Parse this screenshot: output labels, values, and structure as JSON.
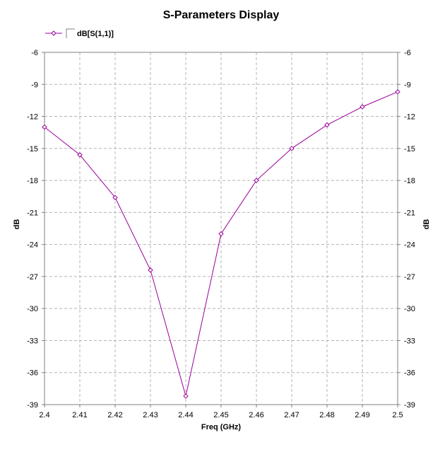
{
  "chart_data": {
    "type": "line",
    "title": "S-Parameters Display",
    "xlabel": "Freq (GHz)",
    "ylabel": "dB",
    "ylabel_right": "dB",
    "xlim": [
      2.4,
      2.5
    ],
    "ylim": [
      -39,
      -6
    ],
    "x_ticks": [
      "2.4",
      "2.41",
      "2.42",
      "2.43",
      "2.44",
      "2.45",
      "2.46",
      "2.47",
      "2.48",
      "2.49",
      "2.5"
    ],
    "y_ticks": [
      "-6",
      "-9",
      "-12",
      "-15",
      "-18",
      "-21",
      "-24",
      "-27",
      "-30",
      "-33",
      "-36",
      "-39"
    ],
    "grid": true,
    "legend_position": "top-left",
    "series": [
      {
        "name": "dB[S(1,1)]",
        "color": "#990099",
        "marker": "diamond",
        "x": [
          2.4,
          2.41,
          2.42,
          2.43,
          2.44,
          2.45,
          2.46,
          2.47,
          2.48,
          2.49,
          2.5
        ],
        "y": [
          -13.0,
          -15.6,
          -19.6,
          -26.4,
          -38.2,
          -23.0,
          -18.0,
          -15.0,
          -12.8,
          -11.1,
          -9.7
        ]
      }
    ]
  }
}
